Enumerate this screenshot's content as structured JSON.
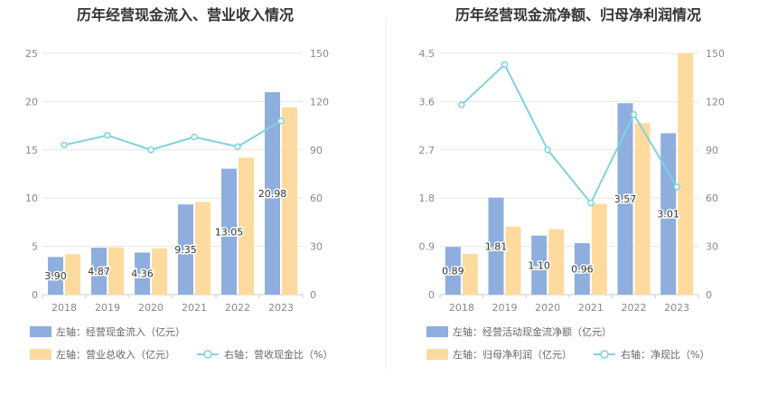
{
  "colors": {
    "bar_primary": "#8eaede",
    "bar_secondary": "#fddb9e",
    "line": "#7fd3dc",
    "divider": "#eeeeee"
  },
  "chart_data": [
    {
      "type": "bar",
      "title": "历年经营现金流入、营业收入情况",
      "categories": [
        "2018",
        "2019",
        "2020",
        "2021",
        "2022",
        "2023"
      ],
      "left_axis": {
        "ticks": [
          "0",
          "5",
          "10",
          "15",
          "20",
          "25"
        ],
        "ylim": [
          0,
          25
        ]
      },
      "right_axis": {
        "ticks": [
          "0",
          "30",
          "60",
          "90",
          "120",
          "150"
        ],
        "ylim": [
          0,
          150
        ]
      },
      "series": [
        {
          "name": "左轴：经营现金流入（亿元）",
          "kind": "bar",
          "axis": "left",
          "color": "#8eaede",
          "values": [
            3.9,
            4.87,
            4.36,
            9.35,
            13.05,
            20.98
          ],
          "labels": [
            "3.90",
            "4.87",
            "4.36",
            "9.35",
            "13.05",
            "20.98"
          ]
        },
        {
          "name": "左轴：营业总收入（亿元）",
          "kind": "bar",
          "axis": "left",
          "color": "#fddb9e",
          "values": [
            4.2,
            4.9,
            4.8,
            9.6,
            14.2,
            19.4
          ]
        },
        {
          "name": "右轴：营收现金比（%）",
          "kind": "line",
          "axis": "right",
          "color": "#7fd3dc",
          "values": [
            93,
            99,
            90,
            98,
            92,
            108
          ]
        }
      ]
    },
    {
      "type": "bar",
      "title": "历年经营现金流净额、归母净利润情况",
      "categories": [
        "2018",
        "2019",
        "2020",
        "2021",
        "2022",
        "2023"
      ],
      "left_axis": {
        "ticks": [
          "0",
          "0.9",
          "1.8",
          "2.7",
          "3.6",
          "4.5"
        ],
        "ylim": [
          0,
          4.5
        ]
      },
      "right_axis": {
        "ticks": [
          "0",
          "30",
          "60",
          "90",
          "120",
          "150"
        ],
        "ylim": [
          0,
          150
        ]
      },
      "series": [
        {
          "name": "左轴：经营活动现金流净额（亿元）",
          "kind": "bar",
          "axis": "left",
          "color": "#8eaede",
          "values": [
            0.89,
            1.81,
            1.1,
            0.96,
            3.57,
            3.01
          ],
          "labels": [
            "0.89",
            "1.81",
            "1.10",
            "0.96",
            "3.57",
            "3.01"
          ]
        },
        {
          "name": "左轴：归母净利润（亿元）",
          "kind": "bar",
          "axis": "left",
          "color": "#fddb9e",
          "values": [
            0.76,
            1.27,
            1.22,
            1.69,
            3.2,
            4.5
          ]
        },
        {
          "name": "右轴：净现比（%）",
          "kind": "line",
          "axis": "right",
          "color": "#7fd3dc",
          "values": [
            118,
            143,
            90,
            57,
            112,
            67
          ]
        }
      ]
    }
  ]
}
